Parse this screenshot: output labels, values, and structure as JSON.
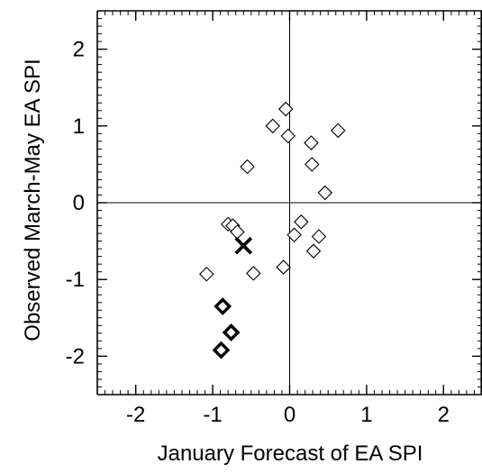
{
  "chart_data": {
    "type": "scatter",
    "xlabel": "January Forecast of EA SPI",
    "ylabel": "Observed March-May EA SPI",
    "xlim": [
      -2.5,
      2.5
    ],
    "ylim": [
      -2.5,
      2.5
    ],
    "x_major_ticks": [
      -2,
      -1,
      0,
      1,
      2
    ],
    "y_major_ticks": [
      -2,
      -1,
      0,
      1,
      2
    ],
    "x_tick_labels": [
      "-2",
      "-1",
      "0",
      "1",
      "2"
    ],
    "y_tick_labels": [
      "-2",
      "-1",
      "0",
      "1",
      "2"
    ],
    "minor_tick_step": 0.1,
    "zero_lines": true,
    "grid": false,
    "series": [
      {
        "marker": "open-diamond",
        "points": [
          {
            "x": -0.05,
            "y": 1.22
          },
          {
            "x": -0.22,
            "y": 1.0
          },
          {
            "x": -0.02,
            "y": 0.87
          },
          {
            "x": 0.63,
            "y": 0.94
          },
          {
            "x": 0.28,
            "y": 0.78
          },
          {
            "x": -0.55,
            "y": 0.47
          },
          {
            "x": 0.29,
            "y": 0.5
          },
          {
            "x": 0.46,
            "y": 0.13
          },
          {
            "x": -0.8,
            "y": -0.28
          },
          {
            "x": -0.74,
            "y": -0.3
          },
          {
            "x": -0.68,
            "y": -0.38
          },
          {
            "x": 0.15,
            "y": -0.25
          },
          {
            "x": 0.06,
            "y": -0.42
          },
          {
            "x": 0.38,
            "y": -0.44
          },
          {
            "x": 0.31,
            "y": -0.63
          },
          {
            "x": -0.47,
            "y": -0.92
          },
          {
            "x": -0.08,
            "y": -0.84
          },
          {
            "x": -1.08,
            "y": -0.93
          }
        ]
      },
      {
        "marker": "bold-diamond",
        "points": [
          {
            "x": -0.87,
            "y": -1.35
          },
          {
            "x": -0.76,
            "y": -1.69
          },
          {
            "x": -0.89,
            "y": -1.92
          }
        ]
      },
      {
        "marker": "x-cross",
        "points": [
          {
            "x": -0.6,
            "y": -0.56
          }
        ]
      }
    ]
  }
}
